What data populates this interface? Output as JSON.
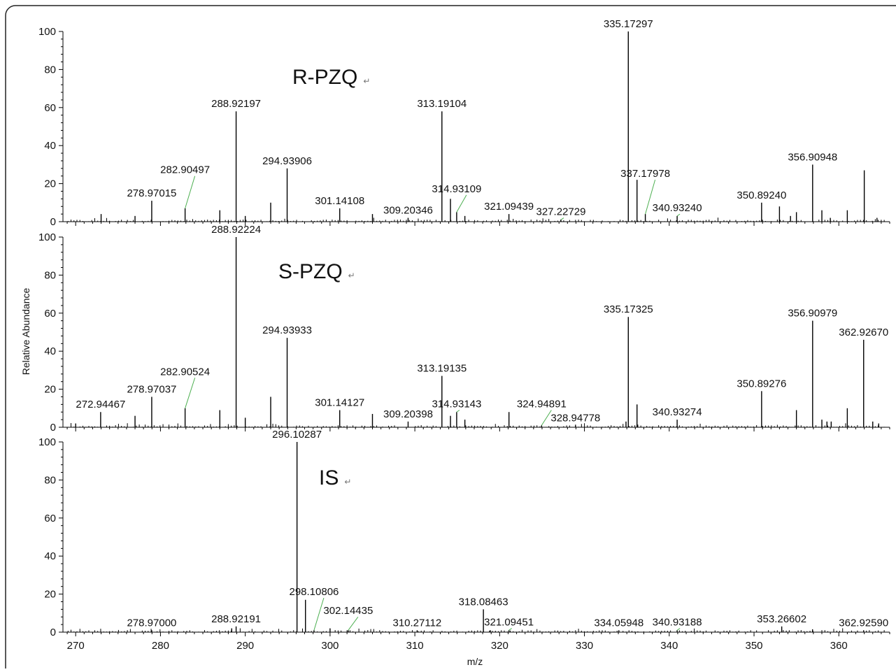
{
  "chart_data": [
    {
      "type": "bar",
      "title": "R-PZQ",
      "title_mark": "↵",
      "ylabel": "Relative Abundance",
      "xlim": [
        268.5,
        366
      ],
      "ylim": [
        0,
        100
      ],
      "yticks": [
        "0",
        "20",
        "40",
        "60",
        "80",
        "100"
      ],
      "labeled_peaks": [
        {
          "x": 278.97015,
          "y": 11,
          "label": "278.97015"
        },
        {
          "x": 282.90497,
          "y": 7,
          "label": "282.90497",
          "label_y": 24
        },
        {
          "x": 288.92197,
          "y": 58,
          "label": "288.92197"
        },
        {
          "x": 294.93906,
          "y": 28,
          "label": "294.93906"
        },
        {
          "x": 301.14108,
          "y": 7,
          "label": "301.14108"
        },
        {
          "x": 309.20346,
          "y": 2,
          "label": "309.20346"
        },
        {
          "x": 313.19104,
          "y": 58,
          "label": "313.19104"
        },
        {
          "x": 314.93109,
          "y": 5,
          "label": "314.93109",
          "label_y": 14
        },
        {
          "x": 321.09439,
          "y": 4,
          "label": "321.09439"
        },
        {
          "x": 327.22729,
          "y": 1,
          "label": "327.22729",
          "label_y": 2
        },
        {
          "x": 335.17297,
          "y": 100,
          "label": "335.17297"
        },
        {
          "x": 337.17978,
          "y": 4,
          "label": "337.17978",
          "label_y": 22
        },
        {
          "x": 340.9324,
          "y": 3,
          "label": "340.93240",
          "label_y": 4
        },
        {
          "x": 350.8924,
          "y": 10,
          "label": "350.89240"
        },
        {
          "x": 356.90948,
          "y": 30,
          "label": "356.90948"
        }
      ],
      "other_peaks": [
        {
          "x": 273.0,
          "y": 4
        },
        {
          "x": 277.0,
          "y": 3
        },
        {
          "x": 287.0,
          "y": 6
        },
        {
          "x": 290.0,
          "y": 3
        },
        {
          "x": 293.0,
          "y": 10
        },
        {
          "x": 305.0,
          "y": 4
        },
        {
          "x": 314.2,
          "y": 12
        },
        {
          "x": 315.9,
          "y": 3
        },
        {
          "x": 336.2,
          "y": 22
        },
        {
          "x": 353.0,
          "y": 8
        },
        {
          "x": 354.3,
          "y": 3
        },
        {
          "x": 355.0,
          "y": 5
        },
        {
          "x": 358.0,
          "y": 6
        },
        {
          "x": 359.0,
          "y": 2
        },
        {
          "x": 361.0,
          "y": 6
        },
        {
          "x": 363.0,
          "y": 27
        },
        {
          "x": 364.5,
          "y": 2
        }
      ]
    },
    {
      "type": "bar",
      "title": "S-PZQ",
      "title_mark": "↵",
      "ylabel": "Relative Abundance",
      "xlim": [
        268.5,
        366
      ],
      "ylim": [
        0,
        100
      ],
      "yticks": [
        "0",
        "20",
        "40",
        "60",
        "80",
        "100"
      ],
      "labeled_peaks": [
        {
          "x": 272.94467,
          "y": 8,
          "label": "272.94467"
        },
        {
          "x": 278.97037,
          "y": 16,
          "label": "278.97037"
        },
        {
          "x": 282.90524,
          "y": 10,
          "label": "282.90524",
          "label_y": 26
        },
        {
          "x": 288.92224,
          "y": 100,
          "label": "288.92224"
        },
        {
          "x": 294.93933,
          "y": 47,
          "label": "294.93933"
        },
        {
          "x": 301.14127,
          "y": 9,
          "label": "301.14127"
        },
        {
          "x": 309.20398,
          "y": 3,
          "label": "309.20398"
        },
        {
          "x": 313.19135,
          "y": 27,
          "label": "313.19135"
        },
        {
          "x": 314.93143,
          "y": 8,
          "label": "314.93143",
          "label_y": 9
        },
        {
          "x": 324.94891,
          "y": 1,
          "label": "324.94891",
          "label_y": 9
        },
        {
          "x": 328.94778,
          "y": 1,
          "label": "328.94778"
        },
        {
          "x": 335.17325,
          "y": 58,
          "label": "335.17325"
        },
        {
          "x": 340.93274,
          "y": 4,
          "label": "340.93274"
        },
        {
          "x": 350.89276,
          "y": 19,
          "label": "350.89276"
        },
        {
          "x": 356.90979,
          "y": 56,
          "label": "356.90979"
        },
        {
          "x": 362.9267,
          "y": 46,
          "label": "362.92670"
        }
      ],
      "other_peaks": [
        {
          "x": 270.0,
          "y": 2
        },
        {
          "x": 277.0,
          "y": 6
        },
        {
          "x": 287.0,
          "y": 9
        },
        {
          "x": 290.0,
          "y": 5
        },
        {
          "x": 293.0,
          "y": 16
        },
        {
          "x": 305.0,
          "y": 7
        },
        {
          "x": 314.2,
          "y": 6
        },
        {
          "x": 315.9,
          "y": 4
        },
        {
          "x": 321.1,
          "y": 8
        },
        {
          "x": 334.9,
          "y": 3
        },
        {
          "x": 336.2,
          "y": 12
        },
        {
          "x": 355.0,
          "y": 9
        },
        {
          "x": 358.0,
          "y": 4
        },
        {
          "x": 358.6,
          "y": 3
        },
        {
          "x": 359.1,
          "y": 3
        },
        {
          "x": 361.0,
          "y": 10
        },
        {
          "x": 364.0,
          "y": 3
        },
        {
          "x": 364.7,
          "y": 2
        }
      ]
    },
    {
      "type": "bar",
      "title": "IS",
      "title_mark": "↵",
      "xlabel": "m/z",
      "ylabel": "Relative Abundance",
      "xlim": [
        268.5,
        366
      ],
      "ylim": [
        0,
        100
      ],
      "yticks": [
        "0",
        "20",
        "40",
        "60",
        "80",
        "100"
      ],
      "xticks": [
        "270",
        "280",
        "290",
        "300",
        "310",
        "320",
        "330",
        "340",
        "350",
        "360"
      ],
      "labeled_peaks": [
        {
          "x": 278.97,
          "y": 1,
          "label": "278.97000"
        },
        {
          "x": 288.92191,
          "y": 3,
          "label": "288.92191"
        },
        {
          "x": 296.10287,
          "y": 100,
          "label": "296.10287"
        },
        {
          "x": 298.10806,
          "y": 1,
          "label": "298.10806",
          "label_y": 18
        },
        {
          "x": 302.14435,
          "y": 1,
          "label": "302.14435",
          "label_y": 8
        },
        {
          "x": 310.27112,
          "y": 1,
          "label": "310.27112"
        },
        {
          "x": 318.08463,
          "y": 12,
          "label": "318.08463"
        },
        {
          "x": 321.09451,
          "y": 1,
          "label": "321.09451",
          "label_y": 2
        },
        {
          "x": 334.05948,
          "y": 1,
          "label": "334.05948"
        },
        {
          "x": 340.93188,
          "y": 1,
          "label": "340.93188",
          "label_y": 2
        },
        {
          "x": 353.26602,
          "y": 3,
          "label": "353.26602"
        },
        {
          "x": 362.9259,
          "y": 1,
          "label": "362.92590"
        }
      ],
      "other_peaks": [
        {
          "x": 288.4,
          "y": 2
        },
        {
          "x": 297.1,
          "y": 17
        },
        {
          "x": 300.0,
          "y": 2
        },
        {
          "x": 318.9,
          "y": 1
        },
        {
          "x": 356.9,
          "y": 1.5
        }
      ]
    }
  ]
}
